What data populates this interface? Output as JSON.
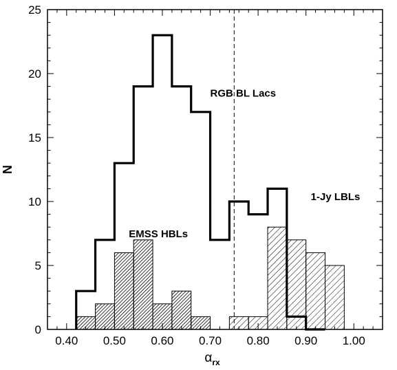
{
  "chart_data": {
    "type": "histogram",
    "xlabel_main": "α",
    "xlabel_sub": "rx",
    "ylabel": "N",
    "xlim": [
      0.36,
      1.06
    ],
    "ylim": [
      0,
      25
    ],
    "x_ticks": [
      0.4,
      0.5,
      0.6,
      0.7,
      0.8,
      0.9,
      1.0
    ],
    "x_tick_labels": [
      "0.40",
      "0.50",
      "0.60",
      "0.70",
      "0.80",
      "0.90",
      "1.00"
    ],
    "y_ticks": [
      0,
      5,
      10,
      15,
      20,
      25
    ],
    "y_tick_labels": [
      "0",
      "5",
      "10",
      "15",
      "20",
      "25"
    ],
    "bin_width": 0.04,
    "divider_x": 0.75,
    "series": [
      {
        "name": "RGB BL Lacs",
        "style": "step",
        "bin_starts": [
          0.42,
          0.46,
          0.5,
          0.54,
          0.58,
          0.62,
          0.66,
          0.7,
          0.74,
          0.78,
          0.82,
          0.86,
          0.9
        ],
        "values": [
          3,
          7,
          13,
          19,
          23,
          19,
          17,
          7,
          10,
          9,
          11,
          1,
          0
        ]
      },
      {
        "name": "EMSS HBLs",
        "style": "hatch-dense",
        "bin_starts": [
          0.42,
          0.46,
          0.5,
          0.54,
          0.58,
          0.62,
          0.66
        ],
        "values": [
          1,
          2,
          6,
          7,
          2,
          3,
          1
        ]
      },
      {
        "name": "1-Jy LBLs",
        "style": "hatch-sparse",
        "bin_starts": [
          0.74,
          0.78,
          0.82,
          0.86,
          0.9,
          0.94
        ],
        "values": [
          1,
          1,
          8,
          7,
          6,
          5
        ]
      }
    ],
    "annotations": [
      {
        "text": "RGB BL Lacs",
        "x": 0.7,
        "y": 18.2
      },
      {
        "text": "1-Jy LBLs",
        "x": 0.91,
        "y": 10.1
      },
      {
        "text": "EMSS HBLs",
        "x": 0.53,
        "y": 7.2
      }
    ]
  }
}
